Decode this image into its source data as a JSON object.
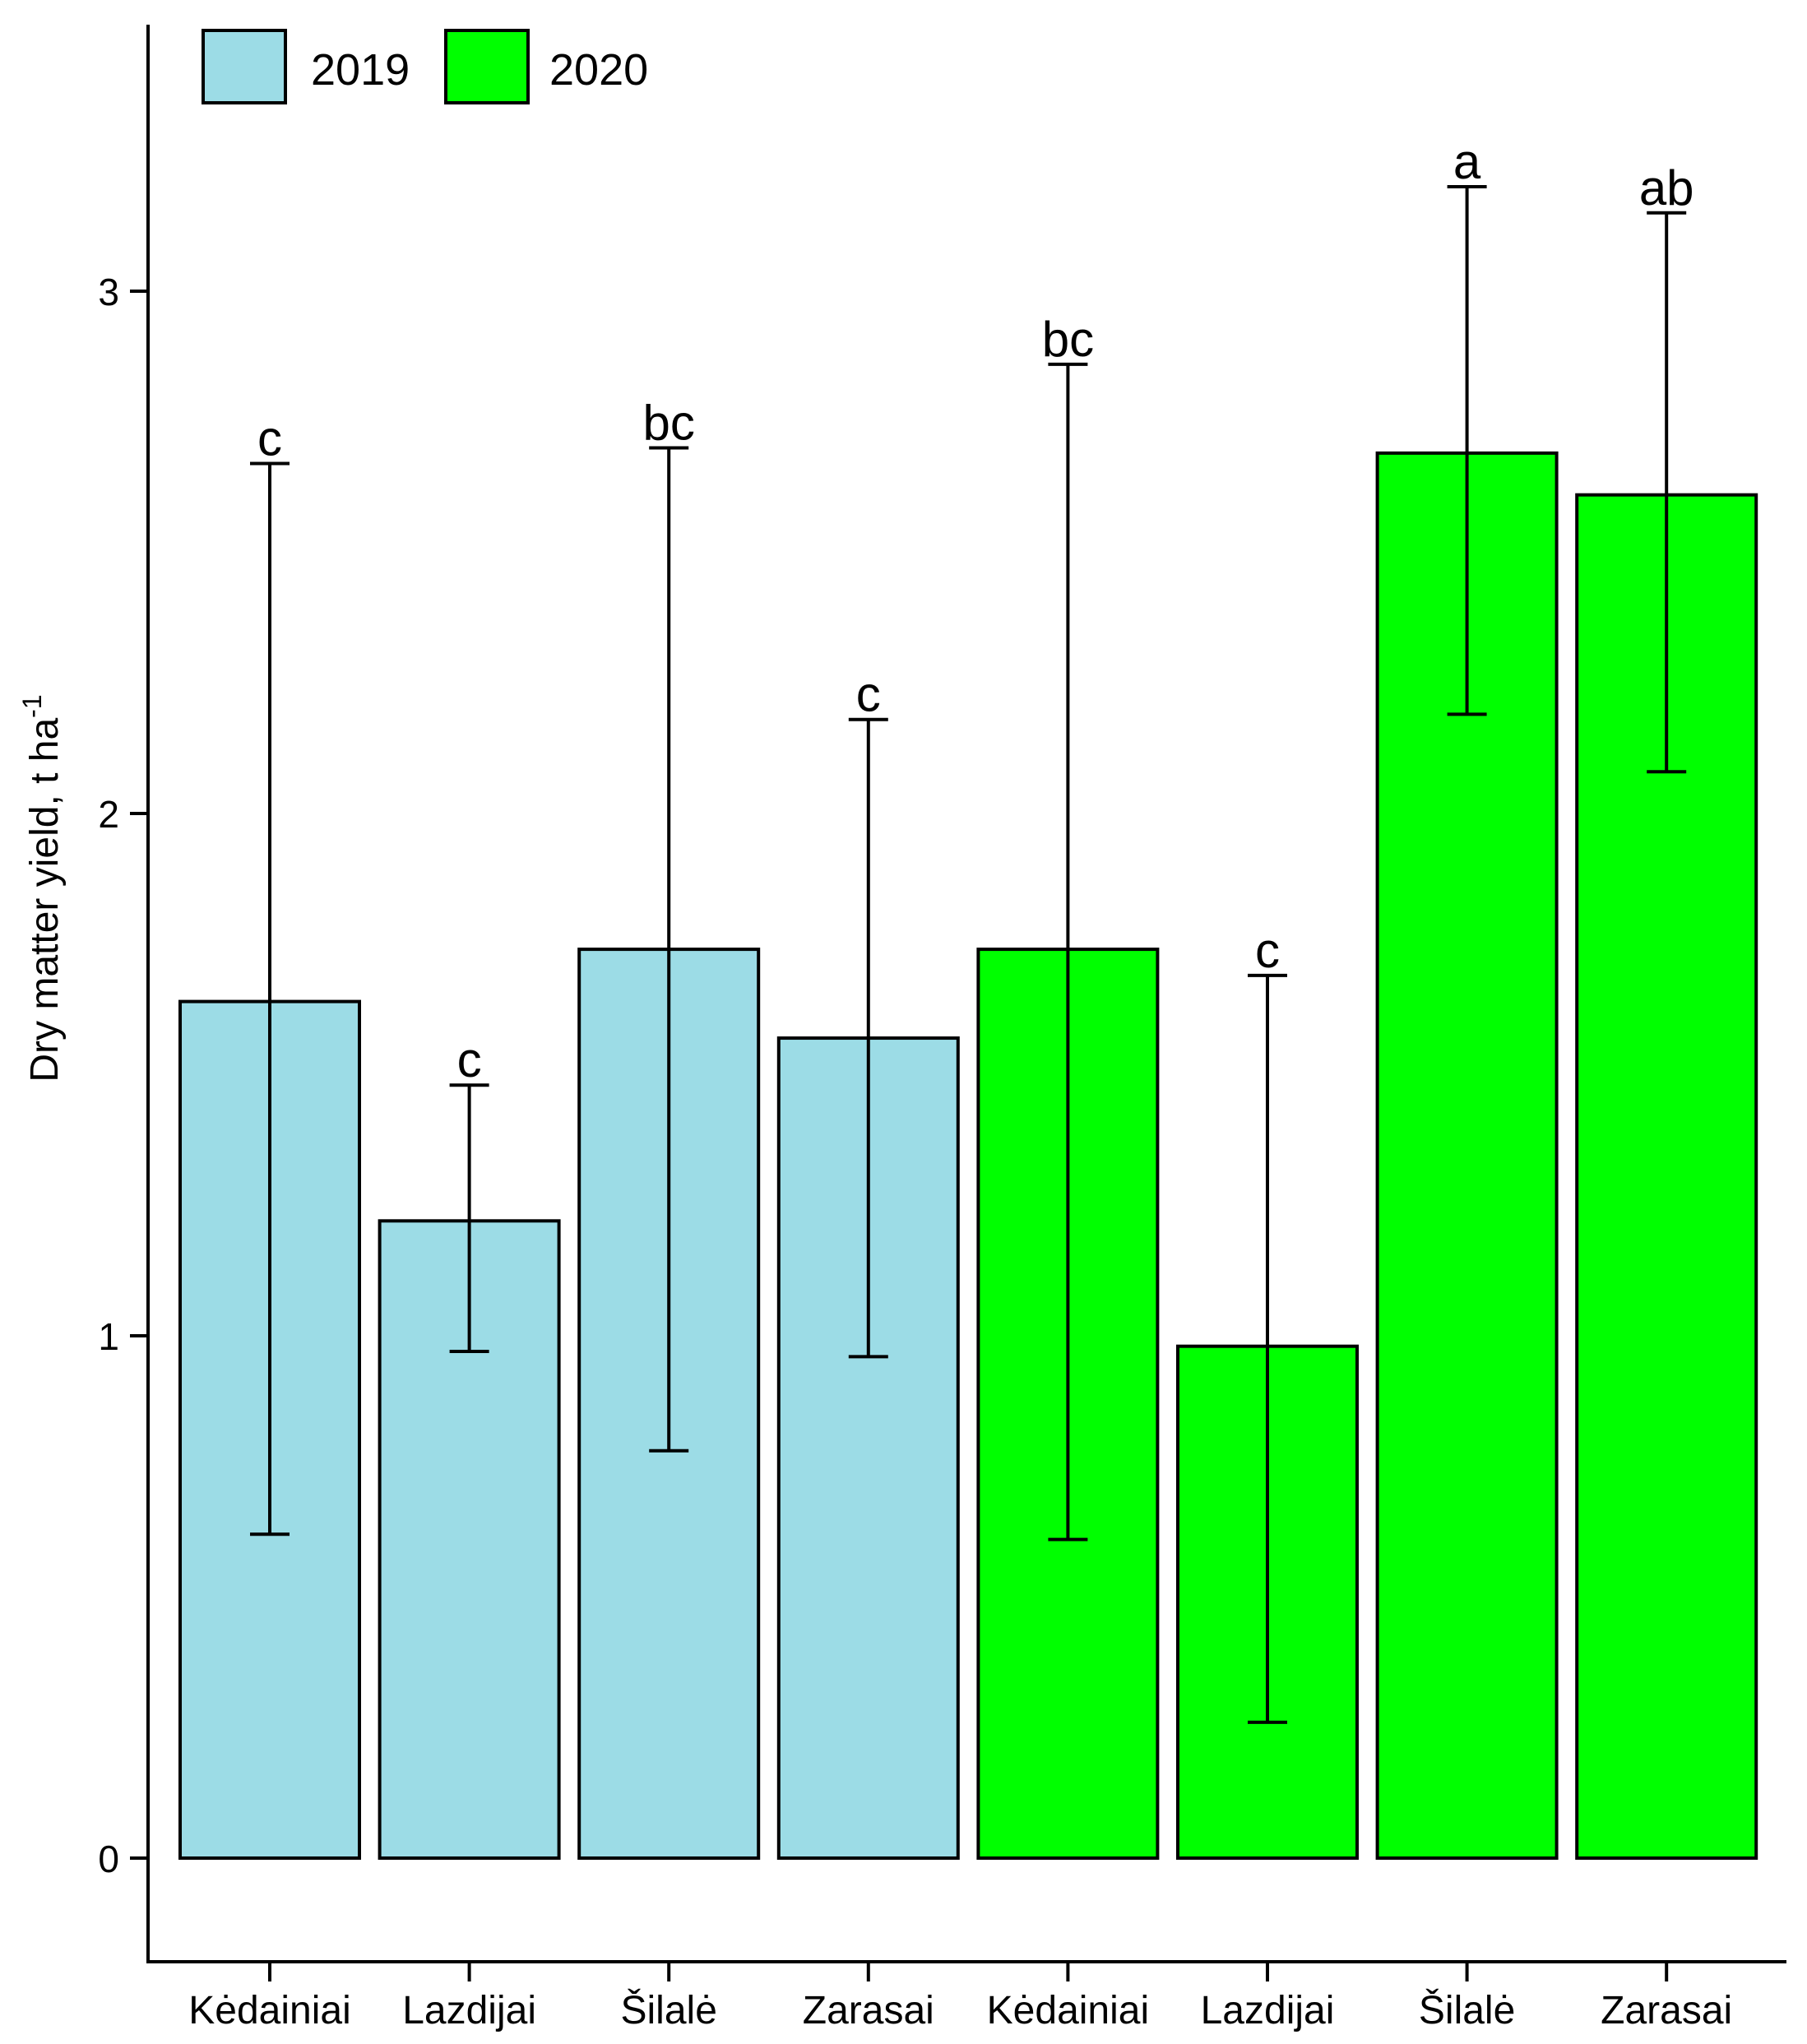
{
  "chart_data": {
    "type": "bar",
    "title": "",
    "xlabel": "",
    "ylabel": "Dry matter yield, t ha",
    "ylabel_superscript": "-1",
    "ylim": [
      -0.2,
      3.5
    ],
    "yticks": [
      0,
      1,
      2,
      3
    ],
    "categories": [
      "Kėdainiai",
      "Lazdijai",
      "Šilalė",
      "Zarasai",
      "Kėdainiai",
      "Lazdijai",
      "Šilalė",
      "Zarasai"
    ],
    "groups": [
      "2019",
      "2019",
      "2019",
      "2019",
      "2020",
      "2020",
      "2020",
      "2020"
    ],
    "values": [
      1.64,
      1.22,
      1.74,
      1.57,
      1.74,
      0.98,
      2.69,
      2.61
    ],
    "error_low": [
      0.62,
      0.97,
      0.78,
      0.96,
      0.61,
      0.26,
      2.19,
      2.08
    ],
    "error_high": [
      2.67,
      1.48,
      2.7,
      2.18,
      2.86,
      1.69,
      3.2,
      3.15
    ],
    "significance": [
      "c",
      "c",
      "bc",
      "c",
      "bc",
      "c",
      "a",
      "ab"
    ],
    "legend": [
      {
        "name": "2019",
        "color": "#9cdce6"
      },
      {
        "name": "2020",
        "color": "#00ff00"
      }
    ],
    "legend_position": "top-left",
    "grid": false
  }
}
